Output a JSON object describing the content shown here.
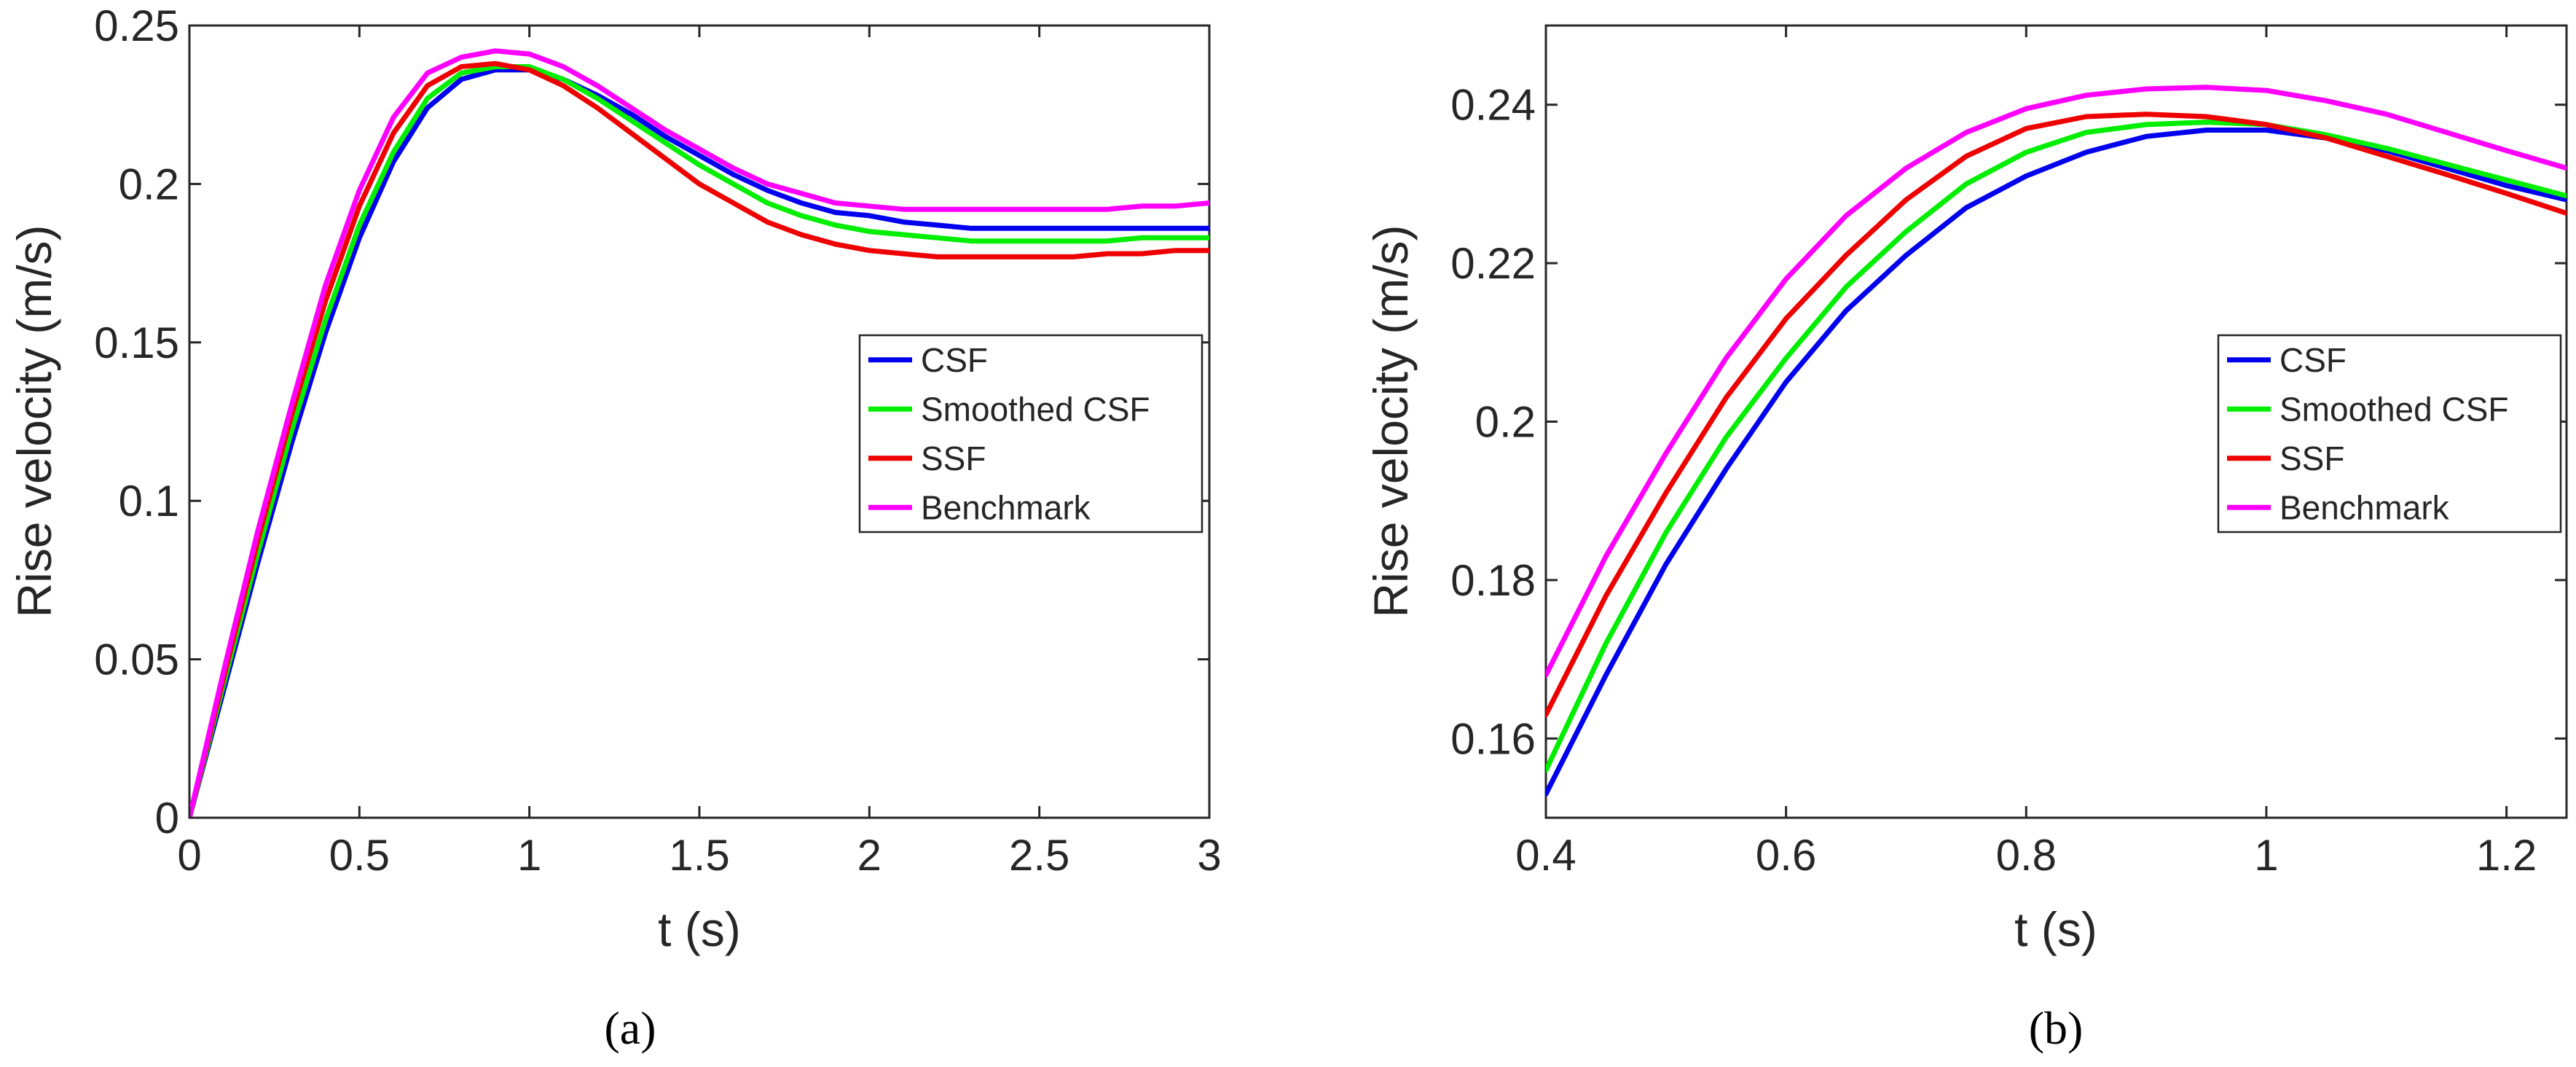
{
  "chart_data": [
    {
      "type": "line",
      "panel_label": "(a)",
      "xlabel": "t (s)",
      "ylabel": "Rise velocity (m/s)",
      "xlim": [
        0,
        3
      ],
      "ylim": [
        0,
        0.25
      ],
      "xticks": [
        0,
        0.5,
        1,
        1.5,
        2,
        2.5,
        3
      ],
      "xtick_labels": [
        "0",
        "0.5",
        "1",
        "1.5",
        "2",
        "2.5",
        "3"
      ],
      "yticks": [
        0,
        0.05,
        0.1,
        0.15,
        0.2,
        0.25
      ],
      "ytick_labels": [
        "0",
        "0.05",
        "0.1",
        "0.15",
        "0.2",
        "0.25"
      ],
      "legend_position": "center-right",
      "x": [
        0,
        0.1,
        0.2,
        0.3,
        0.4,
        0.5,
        0.6,
        0.7,
        0.8,
        0.9,
        1.0,
        1.1,
        1.2,
        1.3,
        1.4,
        1.5,
        1.6,
        1.7,
        1.8,
        1.9,
        2.0,
        2.1,
        2.2,
        2.3,
        2.4,
        2.5,
        2.6,
        2.7,
        2.8,
        2.9,
        3.0
      ],
      "series": [
        {
          "name": "CSF",
          "color": "#0000ee",
          "values": [
            0,
            0.04,
            0.08,
            0.118,
            0.153,
            0.183,
            0.207,
            0.224,
            0.233,
            0.236,
            0.236,
            0.233,
            0.228,
            0.222,
            0.215,
            0.209,
            0.203,
            0.198,
            0.194,
            0.191,
            0.19,
            0.188,
            0.187,
            0.186,
            0.186,
            0.186,
            0.186,
            0.186,
            0.186,
            0.186,
            0.186
          ]
        },
        {
          "name": "Smoothed CSF",
          "color": "#00ee00",
          "values": [
            0,
            0.042,
            0.083,
            0.122,
            0.157,
            0.187,
            0.21,
            0.227,
            0.235,
            0.237,
            0.237,
            0.233,
            0.227,
            0.22,
            0.213,
            0.206,
            0.2,
            0.194,
            0.19,
            0.187,
            0.185,
            0.184,
            0.183,
            0.182,
            0.182,
            0.182,
            0.182,
            0.182,
            0.183,
            0.183,
            0.183
          ]
        },
        {
          "name": "SSF",
          "color": "#ee0000",
          "values": [
            0,
            0.044,
            0.087,
            0.127,
            0.163,
            0.193,
            0.216,
            0.231,
            0.237,
            0.238,
            0.236,
            0.231,
            0.224,
            0.216,
            0.208,
            0.2,
            0.194,
            0.188,
            0.184,
            0.181,
            0.179,
            0.178,
            0.177,
            0.177,
            0.177,
            0.177,
            0.177,
            0.178,
            0.178,
            0.179,
            0.179
          ]
        },
        {
          "name": "Benchmark",
          "color": "#ff00ff",
          "values": [
            0,
            0.046,
            0.09,
            0.13,
            0.168,
            0.198,
            0.221,
            0.235,
            0.24,
            0.242,
            0.241,
            0.237,
            0.231,
            0.224,
            0.217,
            0.211,
            0.205,
            0.2,
            0.197,
            0.194,
            0.193,
            0.192,
            0.192,
            0.192,
            0.192,
            0.192,
            0.192,
            0.192,
            0.193,
            0.193,
            0.194
          ]
        }
      ]
    },
    {
      "type": "line",
      "panel_label": "(b)",
      "xlabel": "t (s)",
      "ylabel": "Rise velocity (m/s)",
      "xlim": [
        0.4,
        1.25
      ],
      "ylim": [
        0.15,
        0.25
      ],
      "xticks": [
        0.4,
        0.6,
        0.8,
        1,
        1.2
      ],
      "xtick_labels": [
        "0.4",
        "0.6",
        "0.8",
        "1",
        "1.2"
      ],
      "yticks": [
        0.16,
        0.18,
        0.2,
        0.22,
        0.24
      ],
      "ytick_labels": [
        "0.16",
        "0.18",
        "0.2",
        "0.22",
        "0.24"
      ],
      "legend_position": "center-right",
      "x": [
        0.4,
        0.45,
        0.5,
        0.55,
        0.6,
        0.65,
        0.7,
        0.75,
        0.8,
        0.85,
        0.9,
        0.95,
        1.0,
        1.05,
        1.1,
        1.15,
        1.2,
        1.25
      ],
      "series": [
        {
          "name": "CSF",
          "color": "#0000ee",
          "values": [
            0.153,
            0.168,
            0.182,
            0.194,
            0.205,
            0.214,
            0.221,
            0.227,
            0.231,
            0.234,
            0.236,
            0.2368,
            0.2368,
            0.2358,
            0.2342,
            0.232,
            0.2298,
            0.228
          ]
        },
        {
          "name": "Smoothed CSF",
          "color": "#00ee00",
          "values": [
            0.156,
            0.172,
            0.186,
            0.198,
            0.208,
            0.217,
            0.224,
            0.23,
            0.234,
            0.2365,
            0.2375,
            0.2378,
            0.2375,
            0.2362,
            0.2345,
            0.2325,
            0.2305,
            0.2285
          ]
        },
        {
          "name": "SSF",
          "color": "#ee0000",
          "values": [
            0.163,
            0.178,
            0.191,
            0.203,
            0.213,
            0.221,
            0.228,
            0.2335,
            0.237,
            0.2385,
            0.2388,
            0.2385,
            0.2375,
            0.2358,
            0.2335,
            0.2312,
            0.2288,
            0.2263
          ]
        },
        {
          "name": "Benchmark",
          "color": "#ff00ff",
          "values": [
            0.168,
            0.183,
            0.196,
            0.208,
            0.218,
            0.226,
            0.232,
            0.2365,
            0.2395,
            0.2412,
            0.242,
            0.2422,
            0.2418,
            0.2405,
            0.2388,
            0.2365,
            0.2342,
            0.232
          ]
        }
      ]
    }
  ]
}
